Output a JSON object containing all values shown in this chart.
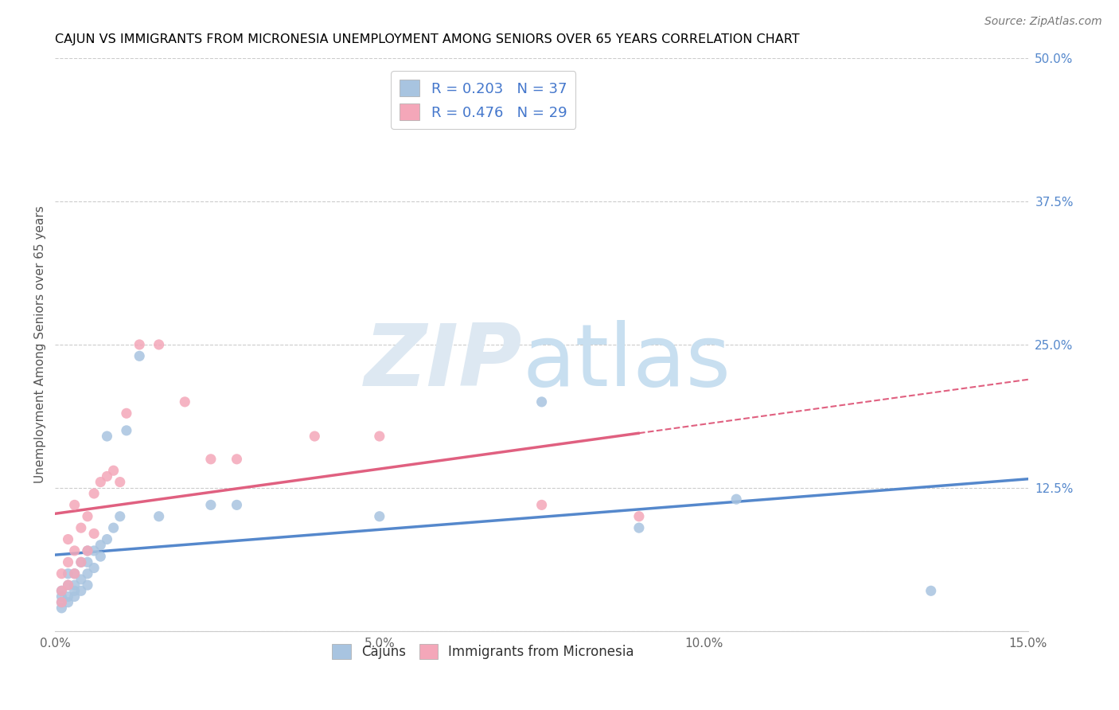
{
  "title": "CAJUN VS IMMIGRANTS FROM MICRONESIA UNEMPLOYMENT AMONG SENIORS OVER 65 YEARS CORRELATION CHART",
  "source": "Source: ZipAtlas.com",
  "ylabel": "Unemployment Among Seniors over 65 years",
  "xlim": [
    0.0,
    0.15
  ],
  "ylim": [
    0.0,
    0.5
  ],
  "xticks": [
    0.0,
    0.025,
    0.05,
    0.075,
    0.1,
    0.125,
    0.15
  ],
  "xtick_labels": [
    "0.0%",
    "",
    "5.0%",
    "",
    "10.0%",
    "",
    "15.0%"
  ],
  "yticks_right": [
    0.0,
    0.125,
    0.25,
    0.375,
    0.5
  ],
  "ytick_labels_right": [
    "",
    "12.5%",
    "25.0%",
    "37.5%",
    "50.0%"
  ],
  "cajun_color": "#a8c4e0",
  "micronesia_color": "#f4a7b9",
  "cajun_line_color": "#5588cc",
  "micronesia_line_color": "#e06080",
  "cajun_R": 0.203,
  "cajun_N": 37,
  "micronesia_R": 0.476,
  "micronesia_N": 29,
  "cajun_x": [
    0.001,
    0.001,
    0.001,
    0.001,
    0.002,
    0.002,
    0.002,
    0.002,
    0.003,
    0.003,
    0.003,
    0.003,
    0.004,
    0.004,
    0.004,
    0.005,
    0.005,
    0.005,
    0.005,
    0.006,
    0.006,
    0.007,
    0.007,
    0.008,
    0.008,
    0.009,
    0.01,
    0.011,
    0.013,
    0.016,
    0.024,
    0.028,
    0.05,
    0.075,
    0.09,
    0.105,
    0.135
  ],
  "cajun_y": [
    0.02,
    0.025,
    0.03,
    0.035,
    0.025,
    0.03,
    0.04,
    0.05,
    0.03,
    0.035,
    0.04,
    0.05,
    0.035,
    0.045,
    0.06,
    0.04,
    0.05,
    0.06,
    0.07,
    0.055,
    0.07,
    0.065,
    0.075,
    0.08,
    0.17,
    0.09,
    0.1,
    0.175,
    0.24,
    0.1,
    0.11,
    0.11,
    0.1,
    0.2,
    0.09,
    0.115,
    0.035
  ],
  "micronesia_x": [
    0.001,
    0.001,
    0.001,
    0.002,
    0.002,
    0.002,
    0.003,
    0.003,
    0.003,
    0.004,
    0.004,
    0.005,
    0.005,
    0.006,
    0.006,
    0.007,
    0.008,
    0.009,
    0.01,
    0.011,
    0.013,
    0.016,
    0.02,
    0.024,
    0.028,
    0.04,
    0.05,
    0.075,
    0.09
  ],
  "micronesia_y": [
    0.025,
    0.035,
    0.05,
    0.04,
    0.06,
    0.08,
    0.05,
    0.07,
    0.11,
    0.06,
    0.09,
    0.07,
    0.1,
    0.085,
    0.12,
    0.13,
    0.135,
    0.14,
    0.13,
    0.19,
    0.25,
    0.25,
    0.2,
    0.15,
    0.15,
    0.17,
    0.17,
    0.11,
    0.1
  ],
  "cajun_line_x_end": 0.15,
  "micronesia_line_x_data_end": 0.09,
  "micronesia_line_x_dashed_start": 0.09,
  "micronesia_line_x_dashed_end": 0.15
}
